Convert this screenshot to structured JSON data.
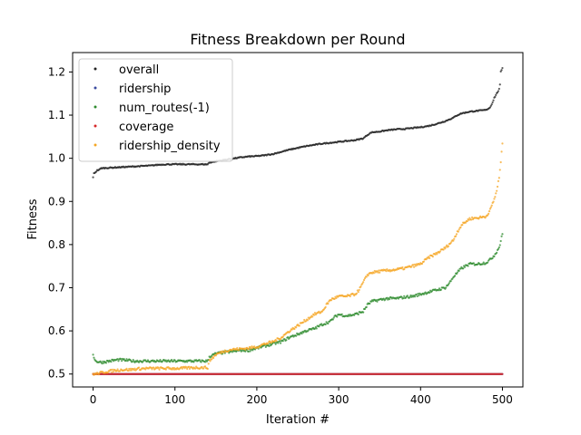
{
  "chart_data": {
    "type": "scatter",
    "title": "Fitness Breakdown per Round",
    "xlabel": "Iteration #",
    "ylabel": "Fitness",
    "xlim": [
      -25,
      525
    ],
    "ylim": [
      0.47,
      1.245
    ],
    "xticks": [
      0,
      100,
      200,
      300,
      400,
      500
    ],
    "xtick_labels": [
      "0",
      "100",
      "200",
      "300",
      "400",
      "500"
    ],
    "yticks": [
      0.5,
      0.6,
      0.7,
      0.8,
      0.9,
      1.0,
      1.1,
      1.2
    ],
    "ytick_labels": [
      "0.5",
      "0.6",
      "0.7",
      "0.8",
      "0.9",
      "1.0",
      "1.1",
      "1.2"
    ],
    "grid": false,
    "legend_position": "top-left",
    "series": [
      {
        "name": "overall",
        "color": "#222222",
        "points": [
          [
            0,
            0.955
          ],
          [
            1,
            0.965
          ],
          [
            3,
            0.968
          ],
          [
            5,
            0.972
          ],
          [
            8,
            0.974
          ],
          [
            10,
            0.977
          ],
          [
            20,
            0.978
          ],
          [
            30,
            0.979
          ],
          [
            40,
            0.98
          ],
          [
            50,
            0.981
          ],
          [
            60,
            0.982
          ],
          [
            70,
            0.983
          ],
          [
            80,
            0.985
          ],
          [
            90,
            0.986
          ],
          [
            100,
            0.986
          ],
          [
            110,
            0.986
          ],
          [
            120,
            0.986
          ],
          [
            130,
            0.986
          ],
          [
            140,
            0.986
          ],
          [
            142,
            0.99
          ],
          [
            150,
            0.993
          ],
          [
            160,
            0.996
          ],
          [
            170,
            0.999
          ],
          [
            180,
            1.002
          ],
          [
            190,
            1.004
          ],
          [
            200,
            1.005
          ],
          [
            210,
            1.007
          ],
          [
            220,
            1.01
          ],
          [
            230,
            1.015
          ],
          [
            240,
            1.02
          ],
          [
            250,
            1.024
          ],
          [
            260,
            1.028
          ],
          [
            270,
            1.031
          ],
          [
            280,
            1.034
          ],
          [
            290,
            1.036
          ],
          [
            300,
            1.038
          ],
          [
            310,
            1.04
          ],
          [
            320,
            1.042
          ],
          [
            330,
            1.046
          ],
          [
            335,
            1.054
          ],
          [
            340,
            1.06
          ],
          [
            350,
            1.062
          ],
          [
            360,
            1.065
          ],
          [
            370,
            1.067
          ],
          [
            380,
            1.068
          ],
          [
            390,
            1.07
          ],
          [
            400,
            1.072
          ],
          [
            410,
            1.075
          ],
          [
            420,
            1.08
          ],
          [
            430,
            1.086
          ],
          [
            440,
            1.094
          ],
          [
            445,
            1.1
          ],
          [
            450,
            1.104
          ],
          [
            460,
            1.108
          ],
          [
            470,
            1.11
          ],
          [
            480,
            1.112
          ],
          [
            485,
            1.118
          ],
          [
            488,
            1.13
          ],
          [
            490,
            1.14
          ],
          [
            493,
            1.15
          ],
          [
            496,
            1.16
          ],
          [
            497,
            1.17
          ],
          [
            498,
            1.2
          ],
          [
            500,
            1.21
          ]
        ]
      },
      {
        "name": "ridership",
        "color": "#3b4ba0",
        "points": [
          [
            0,
            0.5
          ],
          [
            100,
            0.5
          ],
          [
            200,
            0.5
          ],
          [
            300,
            0.5
          ],
          [
            400,
            0.5
          ],
          [
            500,
            0.5
          ]
        ]
      },
      {
        "name": "num_routes(-1)",
        "color": "#2e8b2e",
        "points": [
          [
            0,
            0.545
          ],
          [
            3,
            0.53
          ],
          [
            10,
            0.527
          ],
          [
            20,
            0.53
          ],
          [
            30,
            0.533
          ],
          [
            40,
            0.532
          ],
          [
            50,
            0.53
          ],
          [
            60,
            0.53
          ],
          [
            70,
            0.53
          ],
          [
            80,
            0.53
          ],
          [
            90,
            0.53
          ],
          [
            100,
            0.53
          ],
          [
            110,
            0.53
          ],
          [
            120,
            0.53
          ],
          [
            130,
            0.53
          ],
          [
            140,
            0.53
          ],
          [
            142,
            0.54
          ],
          [
            150,
            0.547
          ],
          [
            160,
            0.55
          ],
          [
            170,
            0.552
          ],
          [
            180,
            0.555
          ],
          [
            190,
            0.555
          ],
          [
            200,
            0.56
          ],
          [
            210,
            0.565
          ],
          [
            220,
            0.57
          ],
          [
            230,
            0.575
          ],
          [
            240,
            0.585
          ],
          [
            250,
            0.592
          ],
          [
            260,
            0.6
          ],
          [
            270,
            0.605
          ],
          [
            280,
            0.615
          ],
          [
            290,
            0.622
          ],
          [
            295,
            0.632
          ],
          [
            300,
            0.638
          ],
          [
            310,
            0.635
          ],
          [
            320,
            0.638
          ],
          [
            330,
            0.645
          ],
          [
            335,
            0.66
          ],
          [
            340,
            0.668
          ],
          [
            350,
            0.672
          ],
          [
            360,
            0.675
          ],
          [
            370,
            0.675
          ],
          [
            380,
            0.678
          ],
          [
            390,
            0.68
          ],
          [
            400,
            0.685
          ],
          [
            410,
            0.69
          ],
          [
            420,
            0.695
          ],
          [
            430,
            0.7
          ],
          [
            435,
            0.71
          ],
          [
            440,
            0.725
          ],
          [
            445,
            0.735
          ],
          [
            450,
            0.745
          ],
          [
            460,
            0.755
          ],
          [
            470,
            0.755
          ],
          [
            480,
            0.758
          ],
          [
            485,
            0.765
          ],
          [
            490,
            0.775
          ],
          [
            495,
            0.79
          ],
          [
            497,
            0.8
          ],
          [
            500,
            0.825
          ]
        ]
      },
      {
        "name": "coverage",
        "color": "#d62728",
        "points": [
          [
            0,
            0.5
          ],
          [
            100,
            0.5
          ],
          [
            200,
            0.5
          ],
          [
            300,
            0.5
          ],
          [
            400,
            0.5
          ],
          [
            500,
            0.5
          ]
        ]
      },
      {
        "name": "ridership_density",
        "color": "#f5a623",
        "points": [
          [
            0,
            0.5
          ],
          [
            3,
            0.5
          ],
          [
            8,
            0.502
          ],
          [
            15,
            0.505
          ],
          [
            25,
            0.508
          ],
          [
            35,
            0.51
          ],
          [
            45,
            0.51
          ],
          [
            55,
            0.512
          ],
          [
            65,
            0.513
          ],
          [
            75,
            0.513
          ],
          [
            85,
            0.513
          ],
          [
            95,
            0.513
          ],
          [
            105,
            0.513
          ],
          [
            115,
            0.514
          ],
          [
            125,
            0.515
          ],
          [
            135,
            0.515
          ],
          [
            140,
            0.515
          ],
          [
            142,
            0.53
          ],
          [
            150,
            0.545
          ],
          [
            160,
            0.553
          ],
          [
            170,
            0.557
          ],
          [
            180,
            0.558
          ],
          [
            190,
            0.56
          ],
          [
            200,
            0.563
          ],
          [
            210,
            0.57
          ],
          [
            220,
            0.575
          ],
          [
            230,
            0.585
          ],
          [
            240,
            0.6
          ],
          [
            250,
            0.612
          ],
          [
            260,
            0.625
          ],
          [
            270,
            0.638
          ],
          [
            280,
            0.645
          ],
          [
            285,
            0.66
          ],
          [
            290,
            0.672
          ],
          [
            300,
            0.68
          ],
          [
            310,
            0.68
          ],
          [
            320,
            0.685
          ],
          [
            325,
            0.695
          ],
          [
            330,
            0.712
          ],
          [
            335,
            0.73
          ],
          [
            340,
            0.735
          ],
          [
            350,
            0.738
          ],
          [
            360,
            0.74
          ],
          [
            370,
            0.742
          ],
          [
            380,
            0.745
          ],
          [
            390,
            0.75
          ],
          [
            400,
            0.755
          ],
          [
            410,
            0.77
          ],
          [
            420,
            0.78
          ],
          [
            430,
            0.792
          ],
          [
            440,
            0.81
          ],
          [
            445,
            0.83
          ],
          [
            450,
            0.845
          ],
          [
            460,
            0.86
          ],
          [
            470,
            0.862
          ],
          [
            480,
            0.865
          ],
          [
            485,
            0.88
          ],
          [
            490,
            0.905
          ],
          [
            493,
            0.925
          ],
          [
            496,
            0.955
          ],
          [
            498,
            0.99
          ],
          [
            500,
            1.035
          ]
        ]
      }
    ]
  }
}
